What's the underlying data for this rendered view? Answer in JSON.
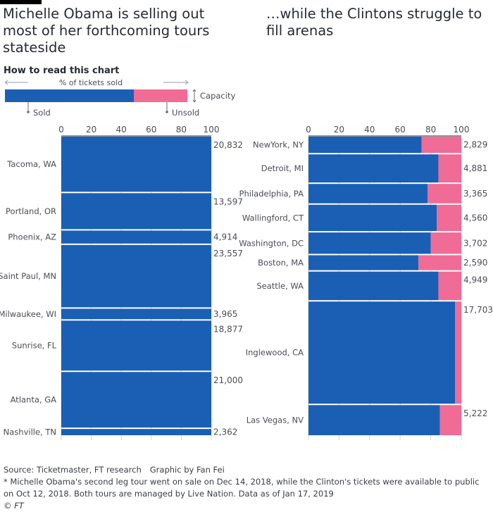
{
  "titles": {
    "left": "Michelle Obama is selling out most of her forthcoming tours stateside",
    "right": "…while the Clintons struggle to fill arenas"
  },
  "legend": {
    "heading": "How to read this chart",
    "axis_label": "% of tickets sold",
    "sold_label": "Sold",
    "unsold_label": "Unsold",
    "capacity_label": "Capacity",
    "example_sold_pct": 60,
    "example_total_pct": 85
  },
  "colors": {
    "sold": "#1a5fb4",
    "unsold": "#f06b95",
    "background": "#ffffff"
  },
  "footer": {
    "source": "Source: Ticketmaster, FT research",
    "credit": "Graphic by Fan Fei",
    "note": "* Michelle Obama's second leg tour went on sale on Dec 14, 2018, while the Clinton's tickets were available to public on Oct 12, 2018. Both tours are managed by Live Nation. Data as of Jan 17, 2019",
    "copyright": "© FT"
  },
  "chart_data": [
    {
      "type": "bar",
      "orientation": "horizontal",
      "bar_height_encodes": "capacity",
      "xlim": [
        0,
        100
      ],
      "xticks": [
        0,
        20,
        40,
        60,
        80,
        100
      ],
      "series": [
        {
          "name": "Sold",
          "color": "#1a5fb4"
        },
        {
          "name": "Unsold",
          "color": "#f06b95"
        }
      ],
      "categories": [
        "Tacoma, WA",
        "Portland, OR",
        "Phoenix, AZ",
        "Saint Paul, MN",
        "Milwaukee, WI",
        "Sunrise, FL",
        "Atlanta, GA",
        "Nashville, TN"
      ],
      "sold_pct": [
        100,
        100,
        100,
        100,
        100,
        100,
        100,
        100
      ],
      "capacity": [
        20832,
        13597,
        4914,
        23557,
        3965,
        18877,
        21000,
        2362
      ],
      "capacity_labels": [
        "20,832",
        "13,597",
        "4,914",
        "23,557",
        "3,965",
        "18,877",
        "21,000",
        "2,362"
      ]
    },
    {
      "type": "bar",
      "orientation": "horizontal",
      "bar_height_encodes": "capacity",
      "xlim": [
        0,
        100
      ],
      "xticks": [
        0,
        20,
        40,
        60,
        80,
        100
      ],
      "series": [
        {
          "name": "Sold",
          "color": "#1a5fb4"
        },
        {
          "name": "Unsold",
          "color": "#f06b95"
        }
      ],
      "categories": [
        "NewYork, NY",
        "Detroit, MI",
        "Philadelphia, PA",
        "Wallingford, CT",
        "Washington, DC",
        "Boston, MA",
        "Seattle, WA",
        "Inglewood, CA",
        "Las Vegas, NV"
      ],
      "sold_pct": [
        74,
        85,
        78,
        84,
        80,
        72,
        85,
        96,
        86
      ],
      "capacity": [
        2829,
        4881,
        3365,
        4560,
        3702,
        2590,
        4949,
        17703,
        5222
      ],
      "capacity_labels": [
        "2,829",
        "4,881",
        "3,365",
        "4,560",
        "3,702",
        "2,590",
        "4,949",
        "17,703",
        "5,222"
      ]
    }
  ]
}
